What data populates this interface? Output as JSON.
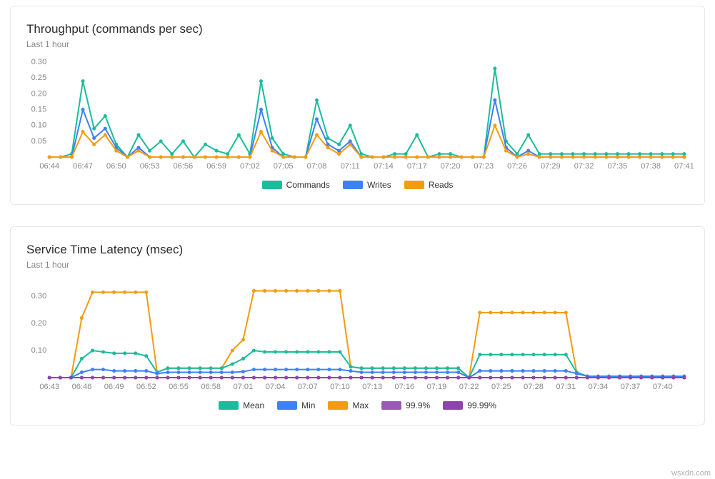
{
  "watermark": "wsxdn.com",
  "panels": [
    {
      "id": "throughput",
      "title": "Throughput (commands per sec)",
      "subtitle": "Last 1 hour",
      "chart": {
        "type": "line",
        "ylim": [
          0,
          0.3
        ],
        "ytick_step": 0.05,
        "ytick_labels": [
          "0.05",
          "0.10",
          "0.15",
          "0.20",
          "0.25",
          "0.30"
        ],
        "x_tick_labels": [
          "06:44",
          "06:47",
          "06:50",
          "06:53",
          "06:56",
          "06:59",
          "07:02",
          "07:05",
          "07:08",
          "07:11",
          "07:14",
          "07:17",
          "07:20",
          "07:23",
          "07:26",
          "07:29",
          "07:32",
          "07:35",
          "07:38",
          "07:41"
        ],
        "x_tick_positions": [
          0,
          3,
          6,
          9,
          12,
          15,
          18,
          21,
          24,
          27,
          30,
          33,
          36,
          39,
          42,
          45,
          48,
          51,
          54,
          57
        ],
        "point_count": 58,
        "background_color": "#ffffff",
        "grid_color": "none",
        "axis_label_color": "#888888",
        "axis_font_size": 11,
        "line_width": 2,
        "marker_radius": 2.5,
        "series": [
          {
            "name": "Commands",
            "color": "#1abc9c",
            "values": [
              0,
              0,
              0.01,
              0.24,
              0.09,
              0.13,
              0.04,
              0,
              0.07,
              0.02,
              0.05,
              0.01,
              0.05,
              0,
              0.04,
              0.02,
              0.01,
              0.07,
              0.01,
              0.24,
              0.06,
              0.01,
              0,
              0,
              0.18,
              0.06,
              0.04,
              0.1,
              0.01,
              0,
              0,
              0.01,
              0.01,
              0.07,
              0,
              0.01,
              0.01,
              0,
              0,
              0,
              0.28,
              0.05,
              0.01,
              0.07,
              0.01,
              0.01,
              0.01,
              0.01,
              0.01,
              0.01,
              0.01,
              0.01,
              0.01,
              0.01,
              0.01,
              0.01,
              0.01,
              0.01
            ]
          },
          {
            "name": "Writes",
            "color": "#3b82f6",
            "values": [
              0,
              0,
              0,
              0.15,
              0.06,
              0.09,
              0.03,
              0,
              0.03,
              0,
              0,
              0,
              0,
              0,
              0,
              0,
              0,
              0,
              0,
              0.15,
              0.03,
              0,
              0,
              0,
              0.12,
              0.04,
              0.02,
              0.05,
              0,
              0,
              0,
              0,
              0,
              0,
              0,
              0,
              0,
              0,
              0,
              0,
              0.18,
              0.03,
              0,
              0.02,
              0,
              0,
              0,
              0,
              0,
              0,
              0,
              0,
              0,
              0,
              0,
              0,
              0,
              0
            ]
          },
          {
            "name": "Reads",
            "color": "#f39c12",
            "values": [
              0,
              0,
              0,
              0.08,
              0.04,
              0.07,
              0.02,
              0,
              0.02,
              0,
              0,
              0,
              0,
              0,
              0,
              0,
              0,
              0,
              0,
              0.08,
              0.02,
              0,
              0,
              0,
              0.07,
              0.03,
              0.01,
              0.04,
              0,
              0,
              0,
              0,
              0,
              0,
              0,
              0,
              0,
              0,
              0,
              0,
              0.1,
              0.02,
              0,
              0.01,
              0,
              0,
              0,
              0,
              0,
              0,
              0,
              0,
              0,
              0,
              0,
              0,
              0,
              0
            ]
          }
        ]
      },
      "legend": [
        {
          "label": "Commands",
          "color": "#1abc9c"
        },
        {
          "label": "Writes",
          "color": "#3b82f6"
        },
        {
          "label": "Reads",
          "color": "#f39c12"
        }
      ]
    },
    {
      "id": "latency",
      "title": "Service Time Latency (msec)",
      "subtitle": "Last 1 hour",
      "chart": {
        "type": "line",
        "ylim": [
          0,
          0.35
        ],
        "ytick_step": 0.1,
        "ytick_labels": [
          "0.10",
          "0.20",
          "0.30"
        ],
        "x_tick_labels": [
          "06:43",
          "06:46",
          "06:49",
          "06:52",
          "06:55",
          "06:58",
          "07:01",
          "07:04",
          "07:07",
          "07:10",
          "07:13",
          "07:16",
          "07:19",
          "07:22",
          "07:25",
          "07:28",
          "07:31",
          "07:34",
          "07:37",
          "07:40"
        ],
        "x_tick_positions": [
          0,
          3,
          6,
          9,
          12,
          15,
          18,
          21,
          24,
          27,
          30,
          33,
          36,
          39,
          42,
          45,
          48,
          51,
          54,
          57
        ],
        "point_count": 60,
        "background_color": "#ffffff",
        "grid_color": "none",
        "axis_label_color": "#888888",
        "axis_font_size": 11,
        "line_width": 2,
        "marker_radius": 2.5,
        "series": [
          {
            "name": "Max",
            "color": "#f39c12",
            "values": [
              0,
              0,
              0,
              0.22,
              0.315,
              0.315,
              0.315,
              0.315,
              0.315,
              0.315,
              0.02,
              0.035,
              0.035,
              0.035,
              0.035,
              0.035,
              0.035,
              0.1,
              0.14,
              0.32,
              0.32,
              0.32,
              0.32,
              0.32,
              0.32,
              0.32,
              0.32,
              0.32,
              0.04,
              0.035,
              0.035,
              0.035,
              0.035,
              0.035,
              0.035,
              0.035,
              0.035,
              0.035,
              0.035,
              0,
              0.24,
              0.24,
              0.24,
              0.24,
              0.24,
              0.24,
              0.24,
              0.24,
              0.24,
              0.02,
              0.005,
              0.005,
              0.005,
              0.005,
              0.005,
              0.005,
              0.005,
              0.005,
              0.005,
              0.005
            ]
          },
          {
            "name": "Mean",
            "color": "#1abc9c",
            "values": [
              0,
              0,
              0,
              0.07,
              0.1,
              0.095,
              0.09,
              0.09,
              0.09,
              0.08,
              0.02,
              0.035,
              0.035,
              0.035,
              0.035,
              0.035,
              0.035,
              0.05,
              0.07,
              0.1,
              0.095,
              0.095,
              0.095,
              0.095,
              0.095,
              0.095,
              0.095,
              0.095,
              0.04,
              0.035,
              0.035,
              0.035,
              0.035,
              0.035,
              0.035,
              0.035,
              0.035,
              0.035,
              0.035,
              0,
              0.085,
              0.085,
              0.085,
              0.085,
              0.085,
              0.085,
              0.085,
              0.085,
              0.085,
              0.02,
              0.005,
              0.005,
              0.005,
              0.005,
              0.005,
              0.005,
              0.005,
              0.005,
              0.005,
              0.005
            ]
          },
          {
            "name": "Min",
            "color": "#3b82f6",
            "values": [
              0,
              0,
              0,
              0.02,
              0.03,
              0.03,
              0.025,
              0.025,
              0.025,
              0.025,
              0.015,
              0.02,
              0.02,
              0.02,
              0.02,
              0.02,
              0.02,
              0.02,
              0.022,
              0.03,
              0.03,
              0.03,
              0.03,
              0.03,
              0.03,
              0.03,
              0.03,
              0.03,
              0.025,
              0.02,
              0.02,
              0.02,
              0.02,
              0.02,
              0.02,
              0.02,
              0.02,
              0.02,
              0.02,
              0,
              0.025,
              0.025,
              0.025,
              0.025,
              0.025,
              0.025,
              0.025,
              0.025,
              0.025,
              0.015,
              0.005,
              0.005,
              0.005,
              0.005,
              0.005,
              0.005,
              0.005,
              0.005,
              0.005,
              0.005
            ]
          },
          {
            "name": "99.9%",
            "color": "#9b59b6",
            "values": [
              0,
              0,
              0,
              0,
              0,
              0,
              0,
              0,
              0,
              0,
              0,
              0,
              0,
              0,
              0,
              0,
              0,
              0,
              0,
              0,
              0,
              0,
              0,
              0,
              0,
              0,
              0,
              0,
              0,
              0,
              0,
              0,
              0,
              0,
              0,
              0,
              0,
              0,
              0,
              0,
              0,
              0,
              0,
              0,
              0,
              0,
              0,
              0,
              0,
              0,
              0,
              0,
              0,
              0,
              0,
              0,
              0,
              0,
              0,
              0
            ]
          },
          {
            "name": "99.99%",
            "color": "#8e44ad",
            "values": [
              0,
              0,
              0,
              0,
              0,
              0,
              0,
              0,
              0,
              0,
              0,
              0,
              0,
              0,
              0,
              0,
              0,
              0,
              0,
              0,
              0,
              0,
              0,
              0,
              0,
              0,
              0,
              0,
              0,
              0,
              0,
              0,
              0,
              0,
              0,
              0,
              0,
              0,
              0,
              0,
              0,
              0,
              0,
              0,
              0,
              0,
              0,
              0,
              0,
              0,
              0,
              0,
              0,
              0,
              0,
              0,
              0,
              0,
              0,
              0
            ]
          }
        ]
      },
      "legend": [
        {
          "label": "Mean",
          "color": "#1abc9c"
        },
        {
          "label": "Min",
          "color": "#3b82f6"
        },
        {
          "label": "Max",
          "color": "#f39c12"
        },
        {
          "label": "99.9%",
          "color": "#9b59b6"
        },
        {
          "label": "99.99%",
          "color": "#8e44ad"
        }
      ]
    }
  ]
}
